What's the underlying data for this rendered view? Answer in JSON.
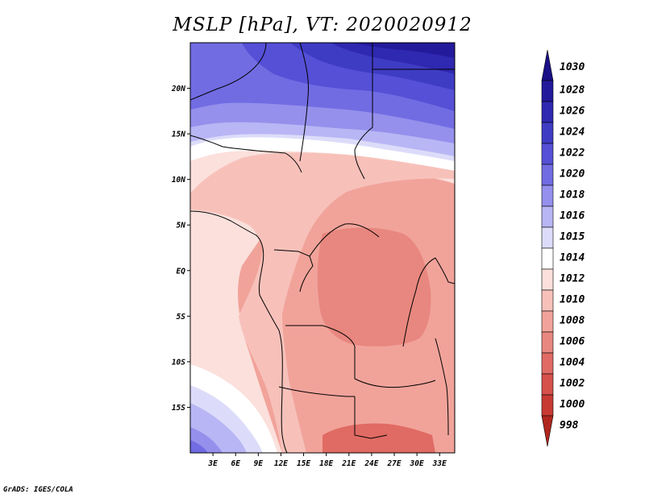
{
  "title": "MSLP [hPa], VT: 2020020912",
  "credit": "GrADS: IGES/COLA",
  "lat_ticks": [
    {
      "label": "20N",
      "lat": 20
    },
    {
      "label": "15N",
      "lat": 15
    },
    {
      "label": "10N",
      "lat": 10
    },
    {
      "label": "5N",
      "lat": 5
    },
    {
      "label": "EQ",
      "lat": 0
    },
    {
      "label": "5S",
      "lat": -5
    },
    {
      "label": "10S",
      "lat": -10
    },
    {
      "label": "15S",
      "lat": -15
    }
  ],
  "lon_ticks": [
    {
      "label": "3E",
      "lon": 3
    },
    {
      "label": "6E",
      "lon": 6
    },
    {
      "label": "9E",
      "lon": 9
    },
    {
      "label": "12E",
      "lon": 12
    },
    {
      "label": "15E",
      "lon": 15
    },
    {
      "label": "18E",
      "lon": 18
    },
    {
      "label": "21E",
      "lon": 21
    },
    {
      "label": "24E",
      "lon": 24
    },
    {
      "label": "27E",
      "lon": 27
    },
    {
      "label": "30E",
      "lon": 30
    },
    {
      "label": "33E",
      "lon": 33
    }
  ],
  "extent": {
    "lon_min": 0,
    "lon_max": 35,
    "lat_min": -20,
    "lat_max": 25
  },
  "colorbar": [
    {
      "label": "1030",
      "color": "#1a0f87"
    },
    {
      "label": "1028",
      "color": "#231a9b"
    },
    {
      "label": "1026",
      "color": "#2f28b0"
    },
    {
      "label": "1024",
      "color": "#3f3cc4"
    },
    {
      "label": "1022",
      "color": "#5550d6"
    },
    {
      "label": "1020",
      "color": "#716ce2"
    },
    {
      "label": "1018",
      "color": "#9590ec"
    },
    {
      "label": "1016",
      "color": "#b8b6f4"
    },
    {
      "label": "1015",
      "color": "#dcdcfa"
    },
    {
      "label": "1014",
      "color": "#ffffff"
    },
    {
      "label": "1012",
      "color": "#fbe0dc"
    },
    {
      "label": "1010",
      "color": "#f7c1ba"
    },
    {
      "label": "1008",
      "color": "#f1a39a"
    },
    {
      "label": "1006",
      "color": "#e8877f"
    },
    {
      "label": "1004",
      "color": "#e06b64"
    },
    {
      "label": "1002",
      "color": "#d6514a"
    },
    {
      "label": "1000",
      "color": "#c73a33"
    },
    {
      "label": "998",
      "color": "#b0261f"
    }
  ]
}
